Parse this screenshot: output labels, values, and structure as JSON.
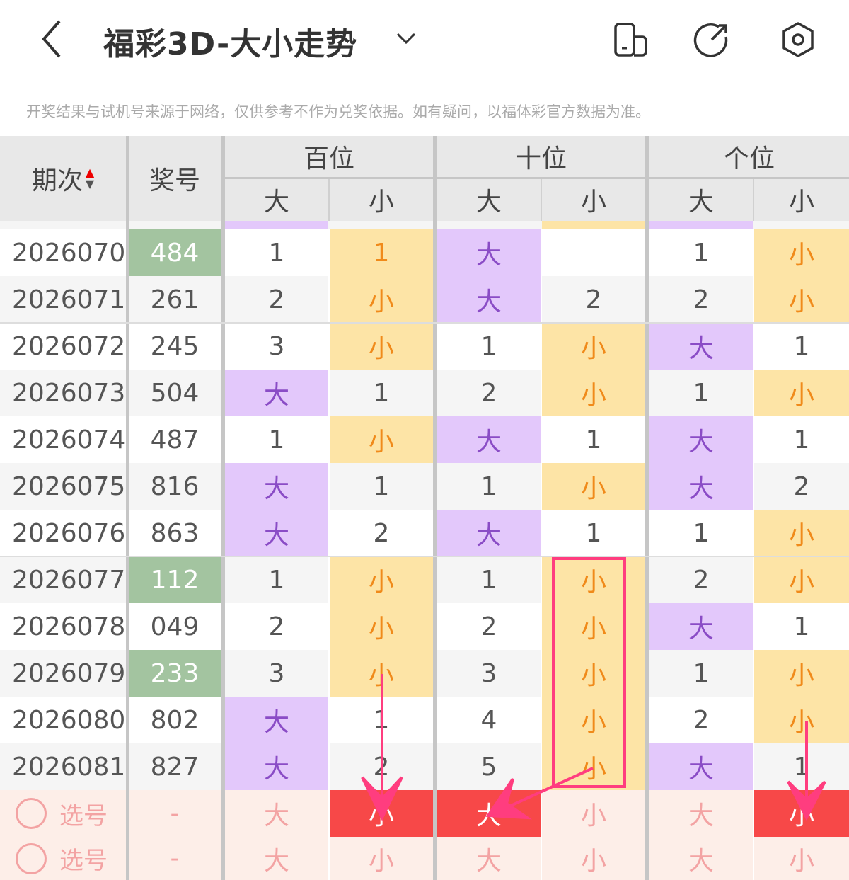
{
  "header": {
    "title": "福彩3D-大小走势",
    "icons": [
      "back-arrow-icon",
      "chevron-down-icon",
      "device-icon",
      "share-icon",
      "settings-icon"
    ]
  },
  "notice": "开奖结果与试机号来源于网络，仅供参考不作为兑奖依据。如有疑问，以福体彩官方数据为准。",
  "columns": {
    "period": "期次",
    "number": "奖号",
    "groups": [
      "百位",
      "十位",
      "个位"
    ],
    "big": "大",
    "small": "小"
  },
  "colors": {
    "big_bg": "#e3c8fb",
    "small_bg": "#fde4a6",
    "highlight_number": "#a3c4a0",
    "selected": "#f74848",
    "annotation": "#ff3d7f"
  },
  "rows": [
    {
      "period": "2026070",
      "number": "484",
      "highlight": true,
      "cells": [
        [
          "1",
          "small"
        ],
        [
          "大",
          "big"
        ],
        [
          "1",
          "small"
        ]
      ]
    },
    {
      "period": "2026071",
      "number": "261",
      "highlight": false,
      "cells": [
        [
          "2",
          "small"
        ],
        [
          "大",
          "big"
        ],
        [
          "2",
          "small"
        ]
      ]
    },
    {
      "period": "2026072",
      "number": "245",
      "highlight": false,
      "cells": [
        [
          "3",
          "small"
        ],
        [
          "1",
          "small"
        ],
        [
          "大",
          "big"
        ]
      ]
    },
    {
      "period": "2026073",
      "number": "504",
      "highlight": false,
      "cells": [
        [
          "大",
          "big"
        ],
        [
          "2",
          "small"
        ],
        [
          "1",
          "small"
        ]
      ]
    },
    {
      "period": "2026074",
      "number": "487",
      "highlight": false,
      "cells": [
        [
          "1",
          "small"
        ],
        [
          "大",
          "big"
        ],
        [
          "大",
          "big"
        ]
      ]
    },
    {
      "period": "2026075",
      "number": "816",
      "highlight": false,
      "cells": [
        [
          "大",
          "big"
        ],
        [
          "1",
          "small"
        ],
        [
          "大",
          "big"
        ]
      ]
    },
    {
      "period": "2026076",
      "number": "863",
      "highlight": false,
      "cells": [
        [
          "大",
          "big"
        ],
        [
          "大",
          "big"
        ],
        [
          "1",
          "small"
        ]
      ]
    },
    {
      "period": "2026077",
      "number": "112",
      "highlight": true,
      "cells": [
        [
          "1",
          "small"
        ],
        [
          "1",
          "small"
        ],
        [
          "2",
          "small"
        ]
      ]
    },
    {
      "period": "2026078",
      "number": "049",
      "highlight": false,
      "cells": [
        [
          "2",
          "small"
        ],
        [
          "2",
          "small"
        ],
        [
          "大",
          "big"
        ]
      ]
    },
    {
      "period": "2026079",
      "number": "233",
      "highlight": true,
      "cells": [
        [
          "3",
          "small"
        ],
        [
          "3",
          "small"
        ],
        [
          "1",
          "small"
        ]
      ]
    },
    {
      "period": "2026080",
      "number": "802",
      "highlight": false,
      "cells": [
        [
          "大",
          "big"
        ],
        [
          "4",
          "small"
        ],
        [
          "2",
          "small"
        ]
      ]
    },
    {
      "period": "2026081",
      "number": "827",
      "highlight": false,
      "cells": [
        [
          "大",
          "big"
        ],
        [
          "5",
          "small"
        ],
        [
          "大",
          "big"
        ]
      ]
    }
  ],
  "select_rows": [
    {
      "label": "选号",
      "number": "-",
      "selected": [
        false,
        true,
        true,
        false,
        false,
        true
      ]
    },
    {
      "label": "选号",
      "number": "-",
      "selected": [
        false,
        false,
        false,
        false,
        false,
        false
      ]
    }
  ]
}
